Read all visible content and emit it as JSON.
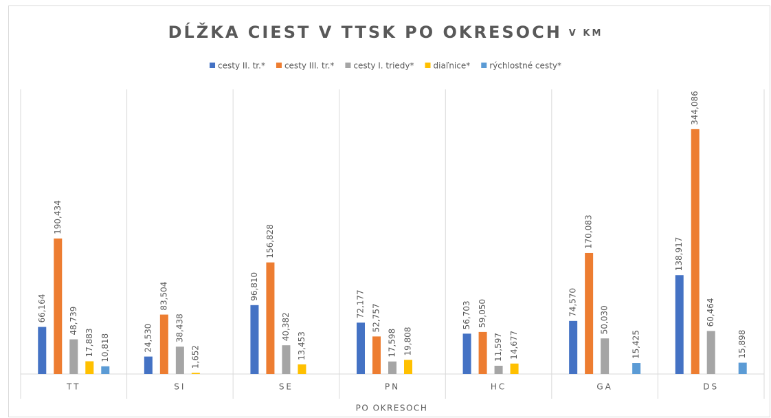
{
  "chart_data": {
    "type": "bar",
    "title": "DĹŽKA CIEST V TTSK PO OKRESOCH",
    "subtitle": "V KM",
    "x_label": "PO OKRESOCH",
    "categories": [
      "TT",
      "SI",
      "SE",
      "PN",
      "HC",
      "GA",
      "DS"
    ],
    "series": [
      {
        "name": "cesty II. tr.*",
        "color": "#4472c4",
        "values": [
          66.164,
          24.53,
          96.81,
          72.177,
          56.703,
          74.57,
          138.917
        ],
        "value_labels": [
          "66,164",
          "24,530",
          "96,810",
          "72,177",
          "56,703",
          "74,570",
          "138,917"
        ]
      },
      {
        "name": "cesty III. tr.*",
        "color": "#ed7d31",
        "values": [
          190.434,
          83.504,
          156.828,
          52.757,
          59.05,
          170.083,
          344.086
        ],
        "value_labels": [
          "190,434",
          "83,504",
          "156,828",
          "52,757",
          "59,050",
          "170,083",
          "344,086"
        ]
      },
      {
        "name": "cesty I. triedy*",
        "color": "#a5a5a5",
        "values": [
          48.739,
          38.438,
          40.382,
          17.598,
          11.597,
          50.03,
          60.464
        ],
        "value_labels": [
          "48,739",
          "38,438",
          "40,382",
          "17,598",
          "11,597",
          "50,030",
          "60,464"
        ]
      },
      {
        "name": "diaľnice*",
        "color": "#ffc000",
        "values": [
          17.883,
          1.652,
          13.453,
          19.808,
          14.677,
          null,
          null
        ],
        "value_labels": [
          "17,883",
          "1,652",
          "13,453",
          "19,808",
          "14,677",
          null,
          null
        ]
      },
      {
        "name": "rýchlostné cesty*",
        "color": "#5b9bd5",
        "values": [
          10.818,
          null,
          null,
          null,
          null,
          15.425,
          15.898
        ],
        "value_labels": [
          "10,818",
          null,
          null,
          null,
          null,
          "15,425",
          "15,898"
        ]
      }
    ],
    "ylim": [
      0,
      400
    ],
    "legend": "top"
  }
}
